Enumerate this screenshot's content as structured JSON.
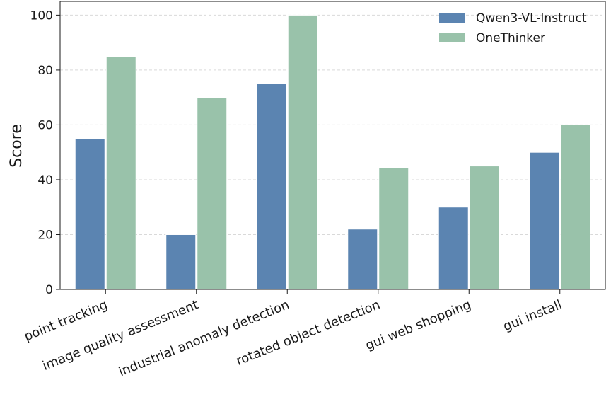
{
  "chart_data": {
    "type": "bar",
    "title": "",
    "xlabel": "",
    "ylabel": "Score",
    "ylim": [
      0,
      105
    ],
    "yticks": [
      0,
      20,
      40,
      60,
      80,
      100
    ],
    "grid": "horizontal-dashed",
    "legend_position": "top-right",
    "categories": [
      "point tracking",
      "image quality assessment",
      "industrial anomaly detection",
      "rotated object detection",
      "gui web shopping",
      "gui install"
    ],
    "series": [
      {
        "name": "Qwen3-VL-Instruct",
        "color": "#5b84b1",
        "values": [
          55,
          20,
          75,
          22,
          30,
          50
        ]
      },
      {
        "name": "OneThinker",
        "color": "#99c2aa",
        "values": [
          85,
          70,
          100,
          44.5,
          45,
          60
        ]
      }
    ]
  }
}
